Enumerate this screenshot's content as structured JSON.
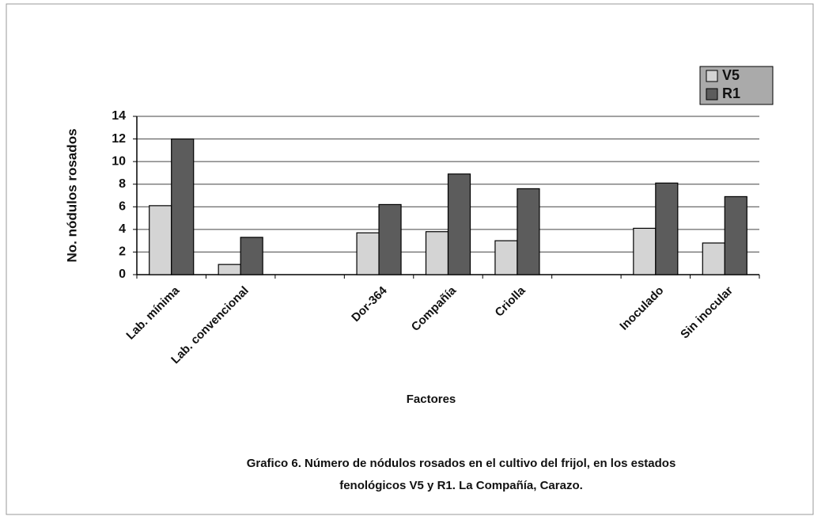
{
  "chart_data": {
    "type": "bar",
    "categories": [
      "Lab. mínima",
      "Lab. convencional",
      null,
      "Dor-364",
      "Compañía",
      "Criolla",
      null,
      "Inoculado",
      "Sin inocular"
    ],
    "series": [
      {
        "name": "V5",
        "color": "#d4d4d4",
        "values": [
          6.1,
          0.9,
          null,
          3.7,
          3.8,
          3.0,
          null,
          4.1,
          2.8
        ]
      },
      {
        "name": "R1",
        "color": "#5c5c5c",
        "values": [
          12,
          3.3,
          null,
          6.2,
          8.9,
          7.6,
          null,
          8.1,
          6.9
        ]
      }
    ],
    "ylim": [
      0,
      14
    ],
    "yticks": [
      0,
      2,
      4,
      6,
      8,
      10,
      12,
      14
    ],
    "grid": true,
    "y_label": "No. nódulos rosados",
    "x_label": "Factores",
    "legend": "top-right",
    "caption": [
      "Grafico 6. Número de nódulos rosados en el cultivo del frijol, en los estados",
      "fenológicos V5 y R1. La Compañía, Carazo."
    ]
  }
}
